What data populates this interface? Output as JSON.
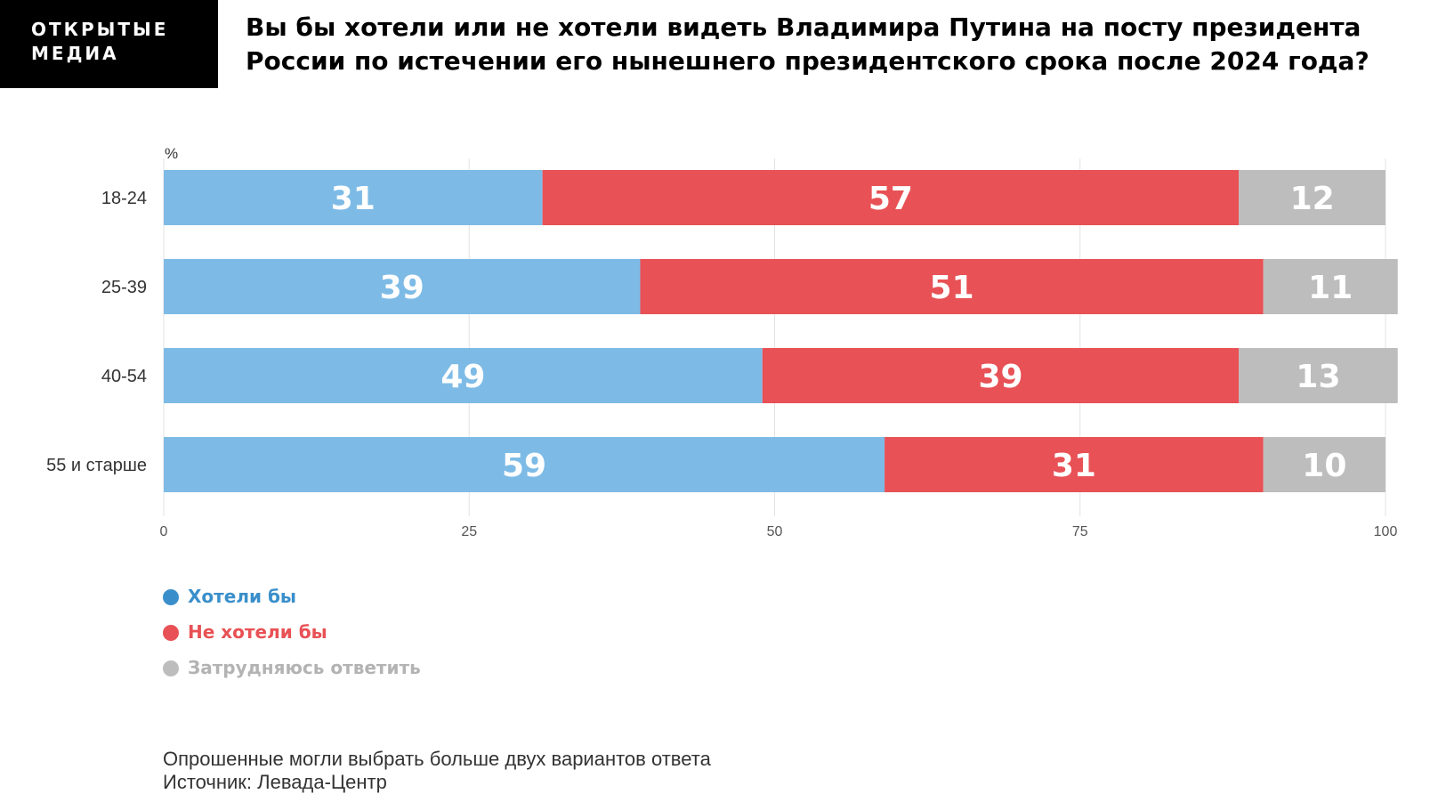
{
  "logo": {
    "line1": "ОТКРЫТЫЕ",
    "line2": "МЕДИА"
  },
  "title": {
    "line1": "Вы бы хотели или не хотели видеть Владимира Путина на посту президента",
    "line2": "России по истечении его нынешнего президентского срока после 2024 года?"
  },
  "chart_data": {
    "type": "bar",
    "orientation": "horizontal",
    "stacked": true,
    "unit_label": "%",
    "categories": [
      "18-24",
      "25-39",
      "40-54",
      "55 и старше"
    ],
    "series": [
      {
        "name": "Хотели бы",
        "values": [
          31,
          39,
          49,
          59
        ]
      },
      {
        "name": "Не хотели бы",
        "values": [
          57,
          51,
          39,
          31
        ]
      },
      {
        "name": "Затрудняюсь ответить",
        "values": [
          12,
          11,
          13,
          10
        ]
      }
    ],
    "xlim": [
      0,
      100
    ],
    "xticks": [
      0,
      25,
      50,
      75,
      100
    ],
    "grid": true,
    "legend_position": "bottom-left",
    "colors": {
      "series": [
        "#7dbbe6",
        "#e85155",
        "#bdbdbd"
      ],
      "legend_text": [
        "#3a8fcb",
        "#e85155",
        "#b3b3b3"
      ],
      "legend_dot": [
        "#3a8fcb",
        "#e85155",
        "#bdbdbd"
      ],
      "bar_label": "#ffffff",
      "grid": "#e3e3e3",
      "axis_text": "#555555"
    }
  },
  "footer": {
    "note": "Опрошенные могли выбрать больше двух вариантов ответа",
    "source": "Источник: Левада-Центр"
  }
}
